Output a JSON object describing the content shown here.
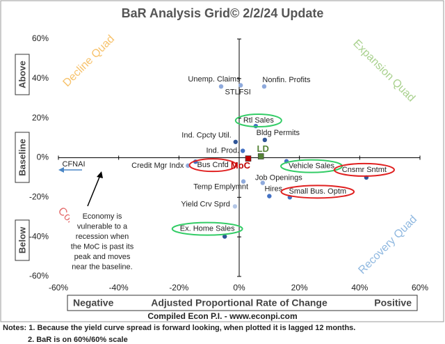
{
  "chart_data": {
    "type": "scatter",
    "title": "BaR Analysis Grid© 2/2/24 Update",
    "x_label": "Adjusted Proportional Rate of Change",
    "x_label_left": "Negative",
    "x_label_right": "Positive",
    "y_labels": [
      "Above",
      "Baseline",
      "Below"
    ],
    "source": "Compiled Econ P.I. - www.econpi.com",
    "notes": [
      "Notes: 1. Because the yield curve spread is forward looking, when plotted it is lagged 12 months.",
      "2. BaR is on 60%/60% scale"
    ],
    "quads": [
      {
        "label": "Decline Quad",
        "color": "#f7c26b"
      },
      {
        "label": "Expansion Quad",
        "color": "#a9d18e"
      },
      {
        "label": "Contraction Quad",
        "color": "#e46c6c"
      },
      {
        "label": "Recovery Quad",
        "color": "#8fb8e0"
      }
    ],
    "annotation_lines": [
      "Economy is",
      "vulnerable to a",
      "recession when",
      "the MoC is past its",
      "peak and moves",
      "near the baseline."
    ],
    "offscale_label": "CFNAI",
    "xlim": [
      -60,
      60
    ],
    "ylim": [
      -60,
      60
    ],
    "xticks": [
      {
        "value": -60,
        "label": "-60%"
      },
      {
        "value": -40,
        "label": "-40%"
      },
      {
        "value": -20,
        "label": "-20%"
      },
      {
        "value": 0,
        "label": "0%"
      },
      {
        "value": 20,
        "label": "20%"
      },
      {
        "value": 40,
        "label": "40%"
      },
      {
        "value": 60,
        "label": "60%"
      }
    ],
    "yticks": [
      {
        "value": -60,
        "label": "-60%"
      },
      {
        "value": -40,
        "label": "-40%"
      },
      {
        "value": -20,
        "label": "-20%"
      },
      {
        "value": 0,
        "label": "0%"
      },
      {
        "value": 20,
        "label": "20%"
      },
      {
        "value": 40,
        "label": "40%"
      },
      {
        "value": 60,
        "label": "60%"
      }
    ],
    "points": [
      {
        "label": "Unemp. Claims",
        "x": -6,
        "y": 36,
        "color": "#8faadc"
      },
      {
        "label": "STLFSI",
        "x": 0.5,
        "y": 36.6,
        "color": "#8faadc"
      },
      {
        "label": "Nonfin. Profits",
        "x": 8.3,
        "y": 36,
        "color": "#8faadc"
      },
      {
        "label": "Rtl Sales",
        "x": 5.5,
        "y": 16,
        "color": "#4472c4",
        "outline": "#33cc66"
      },
      {
        "label": "Bldg Permits",
        "x": 8.5,
        "y": 9,
        "color": "#2f5597"
      },
      {
        "label": "Ind. Cpcty Util.",
        "x": -1.2,
        "y": 8,
        "color": "#2f5597"
      },
      {
        "label": "Ind. Prod.",
        "x": 1.2,
        "y": 3.5,
        "color": "#4472c4"
      },
      {
        "label": "Credit Mgr Indx",
        "x": -17,
        "y": -4,
        "color": "#8faadc"
      },
      {
        "label": "Bus Cnfd",
        "x": -14.5,
        "y": -2,
        "color": "#4472c4",
        "outline": "#e02020"
      },
      {
        "label": "Vehicle Sales",
        "x": 15.7,
        "y": -1.8,
        "color": "#4472c4",
        "outline": "#33cc66"
      },
      {
        "label": "Cnsmr Sntmt",
        "x": 42.2,
        "y": -10,
        "color": "#2f5597",
        "outline": "#e02020"
      },
      {
        "label": "Job Openings",
        "x": 7.8,
        "y": -12.7,
        "color": "#8faadc"
      },
      {
        "label": "Temp Emplymnt",
        "x": 1.4,
        "y": -12,
        "color": "#8faadc"
      },
      {
        "label": "Hires",
        "x": 10,
        "y": -19.4,
        "color": "#4472c4"
      },
      {
        "label": "Small Bus. Optm",
        "x": 16.8,
        "y": -20,
        "color": "#4472c4",
        "outline": "#e02020"
      },
      {
        "label": "Yield Crv Sprd",
        "x": -1.4,
        "y": -24.6,
        "color": "#b4c7e7"
      },
      {
        "label": "Ex. Home Sales",
        "x": -4.8,
        "y": -39.8,
        "color": "#2f5597",
        "outline": "#33cc66"
      }
    ],
    "markers": [
      {
        "label": "MoC",
        "x": 3,
        "y": -0.4,
        "color": "#c00000"
      },
      {
        "label": "LD",
        "x": 7.2,
        "y": 0.7,
        "color": "#548235"
      }
    ]
  }
}
